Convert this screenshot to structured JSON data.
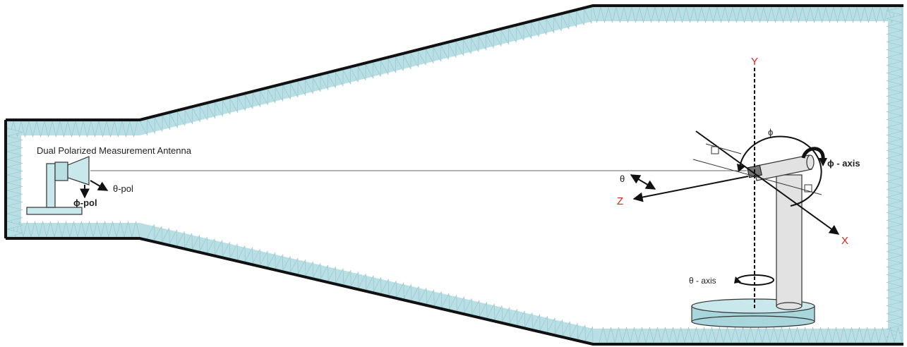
{
  "labels": {
    "antenna": "Dual Polarized Measurement Antenna",
    "theta_pol": "θ-pol",
    "phi_pol": "ϕ-pol",
    "theta": "θ",
    "phi": "ϕ",
    "phi_axis": "ϕ - axis",
    "theta_axis": "θ - axis"
  },
  "axes": {
    "x": "X",
    "y": "Y",
    "z": "Z"
  },
  "colors": {
    "absorber": "#b9dfe4",
    "absorber_edge": "#8fc4cc",
    "wall": "#111111",
    "axis_label": "#e02020",
    "equipment": "#d8d8d8",
    "turntable": "#a8d6dc"
  }
}
